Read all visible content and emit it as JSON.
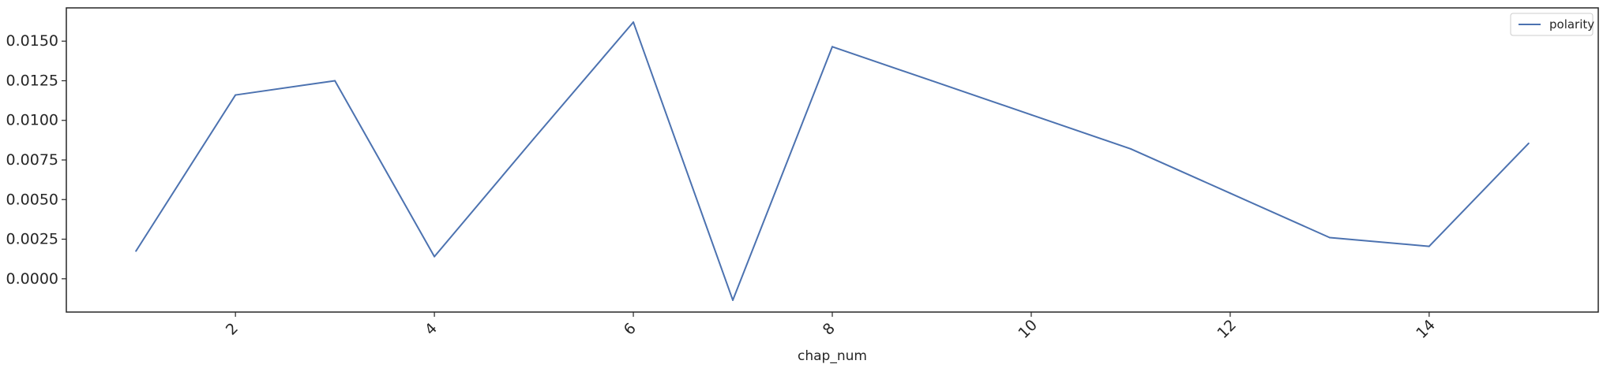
{
  "chart_data": {
    "type": "line",
    "xlabel": "chap_num",
    "ylabel": "",
    "x": [
      1,
      2,
      3,
      4,
      5,
      6,
      7,
      8,
      9,
      10,
      11,
      12,
      13,
      14,
      15
    ],
    "series": [
      {
        "name": "polarity",
        "color": "#4c72b0",
        "values": [
          0.00175,
          0.0116,
          0.0125,
          0.0014,
          0.00885,
          0.0162,
          -0.00135,
          0.01465,
          0.0125,
          0.01035,
          0.0082,
          0.0054,
          0.0026,
          0.00205,
          0.00855
        ]
      }
    ],
    "xlim": [
      0.3,
      15.7
    ],
    "ylim": [
      -0.0021,
      0.0171
    ],
    "xticks": [
      2,
      4,
      6,
      8,
      10,
      12,
      14
    ],
    "xtick_labels": [
      "2",
      "4",
      "6",
      "8",
      "10",
      "12",
      "14"
    ],
    "yticks": [
      0,
      0.0025,
      0.005,
      0.0075,
      0.01,
      0.0125,
      0.015
    ],
    "ytick_labels": [
      "0.0000",
      "0.0025",
      "0.0050",
      "0.0075",
      "0.0100",
      "0.0125",
      "0.0150"
    ],
    "grid": false,
    "legend_position": "top-right"
  }
}
